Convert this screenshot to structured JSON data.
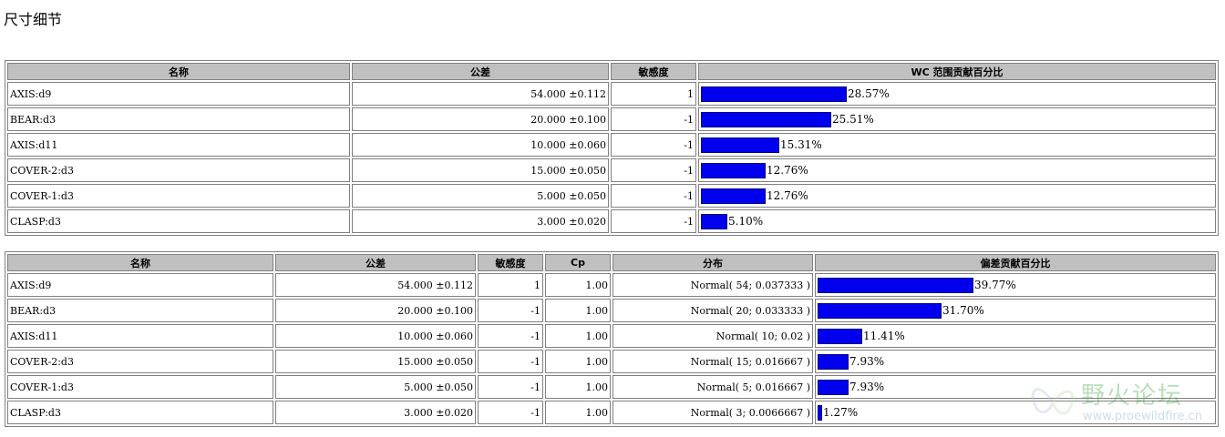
{
  "page_title": "尺寸细节",
  "table1": {
    "headers": [
      "名称",
      "公差",
      "敏感度",
      "WC 范围贡献百分比"
    ],
    "rows": [
      {
        "name": "AXIS:d9",
        "tolerance": "54.000  ±0.112",
        "sensitivity": "1",
        "percent": "28.57%",
        "value": 28.57
      },
      {
        "name": "BEAR:d3",
        "tolerance": "20.000  ±0.100",
        "sensitivity": "-1",
        "percent": "25.51%",
        "value": 25.51
      },
      {
        "name": "AXIS:d11",
        "tolerance": "10.000  ±0.060",
        "sensitivity": "-1",
        "percent": "15.31%",
        "value": 15.31
      },
      {
        "name": "COVER-2:d3",
        "tolerance": "15.000  ±0.050",
        "sensitivity": "-1",
        "percent": "12.76%",
        "value": 12.76
      },
      {
        "name": "COVER-1:d3",
        "tolerance": "5.000  ±0.050",
        "sensitivity": "-1",
        "percent": "12.76%",
        "value": 12.76
      },
      {
        "name": "CLASP:d3",
        "tolerance": "3.000  ±0.020",
        "sensitivity": "-1",
        "percent": "5.10%",
        "value": 5.1
      }
    ]
  },
  "table2": {
    "headers": [
      "名称",
      "公差",
      "敏感度",
      "Cp",
      "分布",
      "偏差贡献百分比"
    ],
    "rows": [
      {
        "name": "AXIS:d9",
        "tolerance": "54.000  ±0.112",
        "sensitivity": "1",
        "cp": "1.00",
        "distribution": "Normal( 54; 0.037333 )",
        "percent": "39.77%",
        "value": 39.77
      },
      {
        "name": "BEAR:d3",
        "tolerance": "20.000  ±0.100",
        "sensitivity": "-1",
        "cp": "1.00",
        "distribution": "Normal( 20; 0.033333 )",
        "percent": "31.70%",
        "value": 31.7
      },
      {
        "name": "AXIS:d11",
        "tolerance": "10.000  ±0.060",
        "sensitivity": "-1",
        "cp": "1.00",
        "distribution": "Normal( 10; 0.02 )",
        "percent": "11.41%",
        "value": 11.41
      },
      {
        "name": "COVER-2:d3",
        "tolerance": "15.000  ±0.050",
        "sensitivity": "-1",
        "cp": "1.00",
        "distribution": "Normal( 15; 0.016667 )",
        "percent": "7.93%",
        "value": 7.93
      },
      {
        "name": "COVER-1:d3",
        "tolerance": "5.000  ±0.050",
        "sensitivity": "-1",
        "cp": "1.00",
        "distribution": "Normal( 5; 0.016667 )",
        "percent": "7.93%",
        "value": 7.93
      },
      {
        "name": "CLASP:d3",
        "tolerance": "3.000  ±0.020",
        "sensitivity": "-1",
        "cp": "1.00",
        "distribution": "Normal( 3; 0.0066667 )",
        "percent": "1.27%",
        "value": 1.27
      }
    ]
  },
  "colors": {
    "bar_fill": "#0000ee",
    "header_bg": "#c0c0c0",
    "border": "#808080"
  },
  "watermark": {
    "text": "野火论坛",
    "url": "www.proewildfire.cn",
    "icon": "butterfly-logo-icon"
  }
}
